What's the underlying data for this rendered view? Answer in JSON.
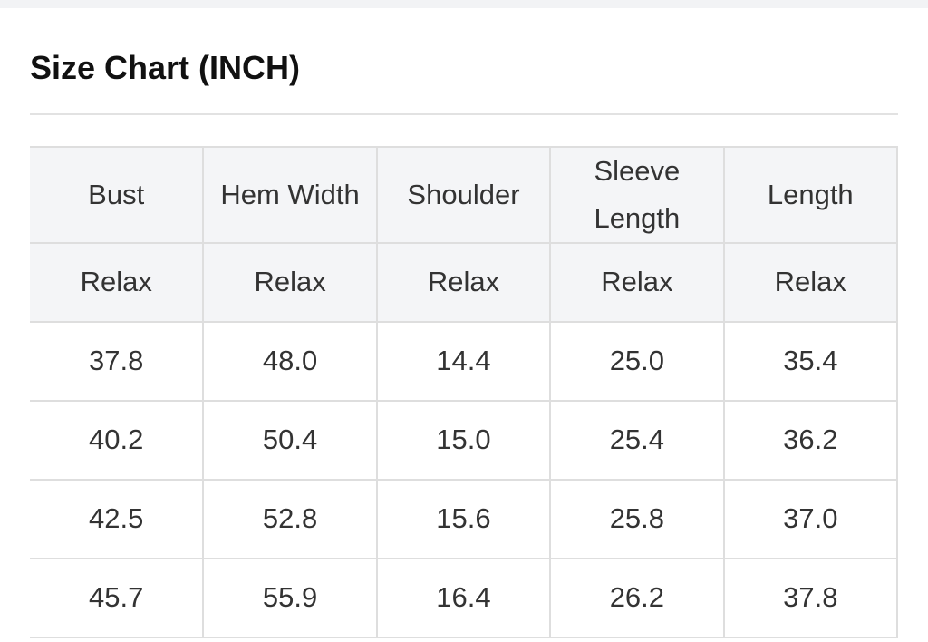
{
  "title": "Size Chart (INCH)",
  "table": {
    "headers": [
      "Bust",
      "Hem Width",
      "Shoulder",
      "Sleeve Length",
      "Length"
    ],
    "subheaders": [
      "Relax",
      "Relax",
      "Relax",
      "Relax",
      "Relax"
    ],
    "rows": [
      [
        "37.8",
        "48.0",
        "14.4",
        "25.0",
        "35.4"
      ],
      [
        "40.2",
        "50.4",
        "15.0",
        "25.4",
        "36.2"
      ],
      [
        "42.5",
        "52.8",
        "15.6",
        "25.8",
        "37.0"
      ],
      [
        "45.7",
        "55.9",
        "16.4",
        "26.2",
        "37.8"
      ]
    ]
  }
}
